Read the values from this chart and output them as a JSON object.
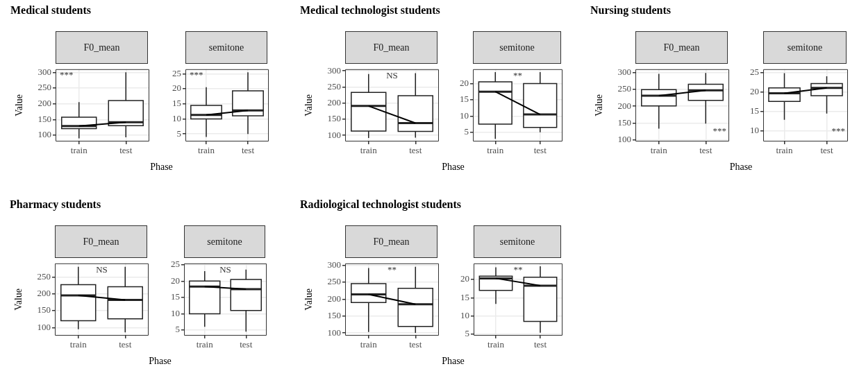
{
  "chart_data": [
    {
      "type": "box",
      "title": "Medical students",
      "subtitle": "F0_mean",
      "xlabel": "Phase",
      "ylabel": "Value",
      "categories": [
        "train",
        "test"
      ],
      "boxes": [
        {
          "low": 90,
          "q1": 121,
          "median": 129,
          "q3": 157,
          "high": 205
        },
        {
          "low": 93,
          "q1": 130,
          "median": 141,
          "q3": 210,
          "high": 300
        }
      ],
      "series": [
        {
          "type": "line",
          "color": "#000000",
          "values": [
            129,
            141
          ]
        }
      ],
      "ylim": [
        80,
        310
      ],
      "yticks": [
        100,
        150,
        200,
        250,
        300
      ],
      "grid": true,
      "annotations": [
        "***"
      ]
    },
    {
      "type": "box",
      "subtitle": "semitone",
      "categories": [
        "train",
        "test"
      ],
      "boxes": [
        {
          "low": 4,
          "q1": 10,
          "median": 11.3,
          "q3": 14.5,
          "high": 20.5
        },
        {
          "low": 5,
          "q1": 11,
          "median": 12.8,
          "q3": 19.3,
          "high": 25.5
        }
      ],
      "series": [
        {
          "type": "line",
          "color": "#000000",
          "values": [
            11.3,
            12.8
          ]
        }
      ],
      "ylim": [
        2.5,
        26.5
      ],
      "yticks": [
        5,
        10,
        15,
        20,
        25
      ],
      "grid": true,
      "annotations": [
        "***"
      ]
    },
    {
      "type": "box",
      "title": "Medical technologist students",
      "subtitle": "F0_mean",
      "xlabel": "Phase",
      "ylabel": "Value",
      "categories": [
        "train",
        "test"
      ],
      "boxes": [
        {
          "low": 92,
          "q1": 113,
          "median": 191,
          "q3": 233,
          "high": 290
        },
        {
          "low": 93,
          "q1": 112,
          "median": 138,
          "q3": 223,
          "high": 293
        }
      ],
      "series": [
        {
          "type": "line",
          "color": "#000000",
          "values": [
            191,
            138
          ]
        }
      ],
      "ylim": [
        81,
        305
      ],
      "yticks": [
        100,
        150,
        200,
        250,
        300
      ],
      "grid": true,
      "annotations": [
        "NS"
      ]
    },
    {
      "type": "box",
      "subtitle": "semitone",
      "categories": [
        "train",
        "test"
      ],
      "boxes": [
        {
          "low": 3,
          "q1": 7.5,
          "median": 17.5,
          "q3": 20.5,
          "high": 23.5
        },
        {
          "low": 5,
          "q1": 6.5,
          "median": 10.5,
          "q3": 20,
          "high": 23.5
        }
      ],
      "series": [
        {
          "type": "line",
          "color": "#000000",
          "values": [
            17.5,
            10.5
          ]
        }
      ],
      "ylim": [
        2.2,
        24.4
      ],
      "yticks": [
        5,
        10,
        15,
        20
      ],
      "grid": true,
      "annotations": [
        "**"
      ]
    },
    {
      "type": "box",
      "title": "Nursing students",
      "subtitle": "F0_mean",
      "xlabel": "Phase",
      "ylabel": "Value",
      "categories": [
        "train",
        "test"
      ],
      "boxes": [
        {
          "low": 133,
          "q1": 201,
          "median": 231,
          "q3": 249,
          "high": 296
        },
        {
          "low": 148,
          "q1": 217,
          "median": 247,
          "q3": 265,
          "high": 299
        }
      ],
      "series": [
        {
          "type": "line",
          "color": "#000000",
          "values": [
            231,
            247
          ]
        }
      ],
      "ylim": [
        95,
        310
      ],
      "yticks": [
        100,
        150,
        200,
        250,
        300
      ],
      "grid": true,
      "annotations": [
        "***"
      ]
    },
    {
      "type": "box",
      "subtitle": "semitone",
      "categories": [
        "train",
        "test"
      ],
      "boxes": [
        {
          "low": 12.8,
          "q1": 17.5,
          "median": 19.6,
          "q3": 21,
          "high": 24.8
        },
        {
          "low": 14.4,
          "q1": 19,
          "median": 21,
          "q3": 22.1,
          "high": 24
        }
      ],
      "series": [
        {
          "type": "line",
          "color": "#000000",
          "values": [
            19.6,
            21
          ]
        }
      ],
      "ylim": [
        7.2,
        25.8
      ],
      "yticks": [
        10,
        15,
        20,
        25
      ],
      "grid": true,
      "annotations": [
        "***"
      ]
    },
    {
      "type": "box",
      "title": "Pharmacy students",
      "subtitle": "F0_mean",
      "xlabel": "Phase",
      "ylabel": "Value",
      "categories": [
        "train",
        "test"
      ],
      "boxes": [
        {
          "low": 95,
          "q1": 120,
          "median": 195,
          "q3": 227,
          "high": 280
        },
        {
          "low": 86,
          "q1": 126,
          "median": 182,
          "q3": 221,
          "high": 280
        }
      ],
      "series": [
        {
          "type": "line",
          "color": "#000000",
          "values": [
            195,
            182
          ]
        }
      ],
      "ylim": [
        76,
        290
      ],
      "yticks": [
        100,
        150,
        200,
        250
      ],
      "grid": true,
      "annotations": [
        "NS"
      ]
    },
    {
      "type": "box",
      "subtitle": "semitone",
      "categories": [
        "train",
        "test"
      ],
      "boxes": [
        {
          "low": 6,
          "q1": 10,
          "median": 18.3,
          "q3": 20,
          "high": 23
        },
        {
          "low": 4.5,
          "q1": 11,
          "median": 17.5,
          "q3": 20.5,
          "high": 23.5
        }
      ],
      "series": [
        {
          "type": "line",
          "color": "#000000",
          "values": [
            18.3,
            17.5
          ]
        }
      ],
      "ylim": [
        3.3,
        25.4
      ],
      "yticks": [
        5,
        10,
        15,
        20,
        25
      ],
      "grid": true,
      "annotations": [
        "NS"
      ]
    },
    {
      "type": "box",
      "title": "Radiological technologist students",
      "subtitle": "F0_mean",
      "xlabel": "Phase",
      "ylabel": "Value",
      "categories": [
        "train",
        "test"
      ],
      "boxes": [
        {
          "low": 103,
          "q1": 190,
          "median": 214,
          "q3": 246,
          "high": 292
        },
        {
          "low": 100,
          "q1": 119,
          "median": 185,
          "q3": 232,
          "high": 296
        }
      ],
      "series": [
        {
          "type": "line",
          "color": "#000000",
          "values": [
            214,
            185
          ]
        }
      ],
      "ylim": [
        92,
        306
      ],
      "yticks": [
        100,
        150,
        200,
        250,
        300
      ],
      "grid": true,
      "annotations": [
        "**"
      ]
    },
    {
      "type": "box",
      "subtitle": "semitone",
      "categories": [
        "train",
        "test"
      ],
      "boxes": [
        {
          "low": 13.3,
          "q1": 17,
          "median": 20.3,
          "q3": 20.9,
          "high": 23.3
        },
        {
          "low": 5.4,
          "q1": 8.5,
          "median": 18.3,
          "q3": 20.6,
          "high": 23.6
        }
      ],
      "series": [
        {
          "type": "line",
          "color": "#000000",
          "values": [
            20.3,
            18.3
          ]
        }
      ],
      "ylim": [
        4.6,
        24.4
      ],
      "yticks": [
        5,
        10,
        15,
        20
      ],
      "grid": true,
      "annotations": [
        "**"
      ]
    }
  ]
}
